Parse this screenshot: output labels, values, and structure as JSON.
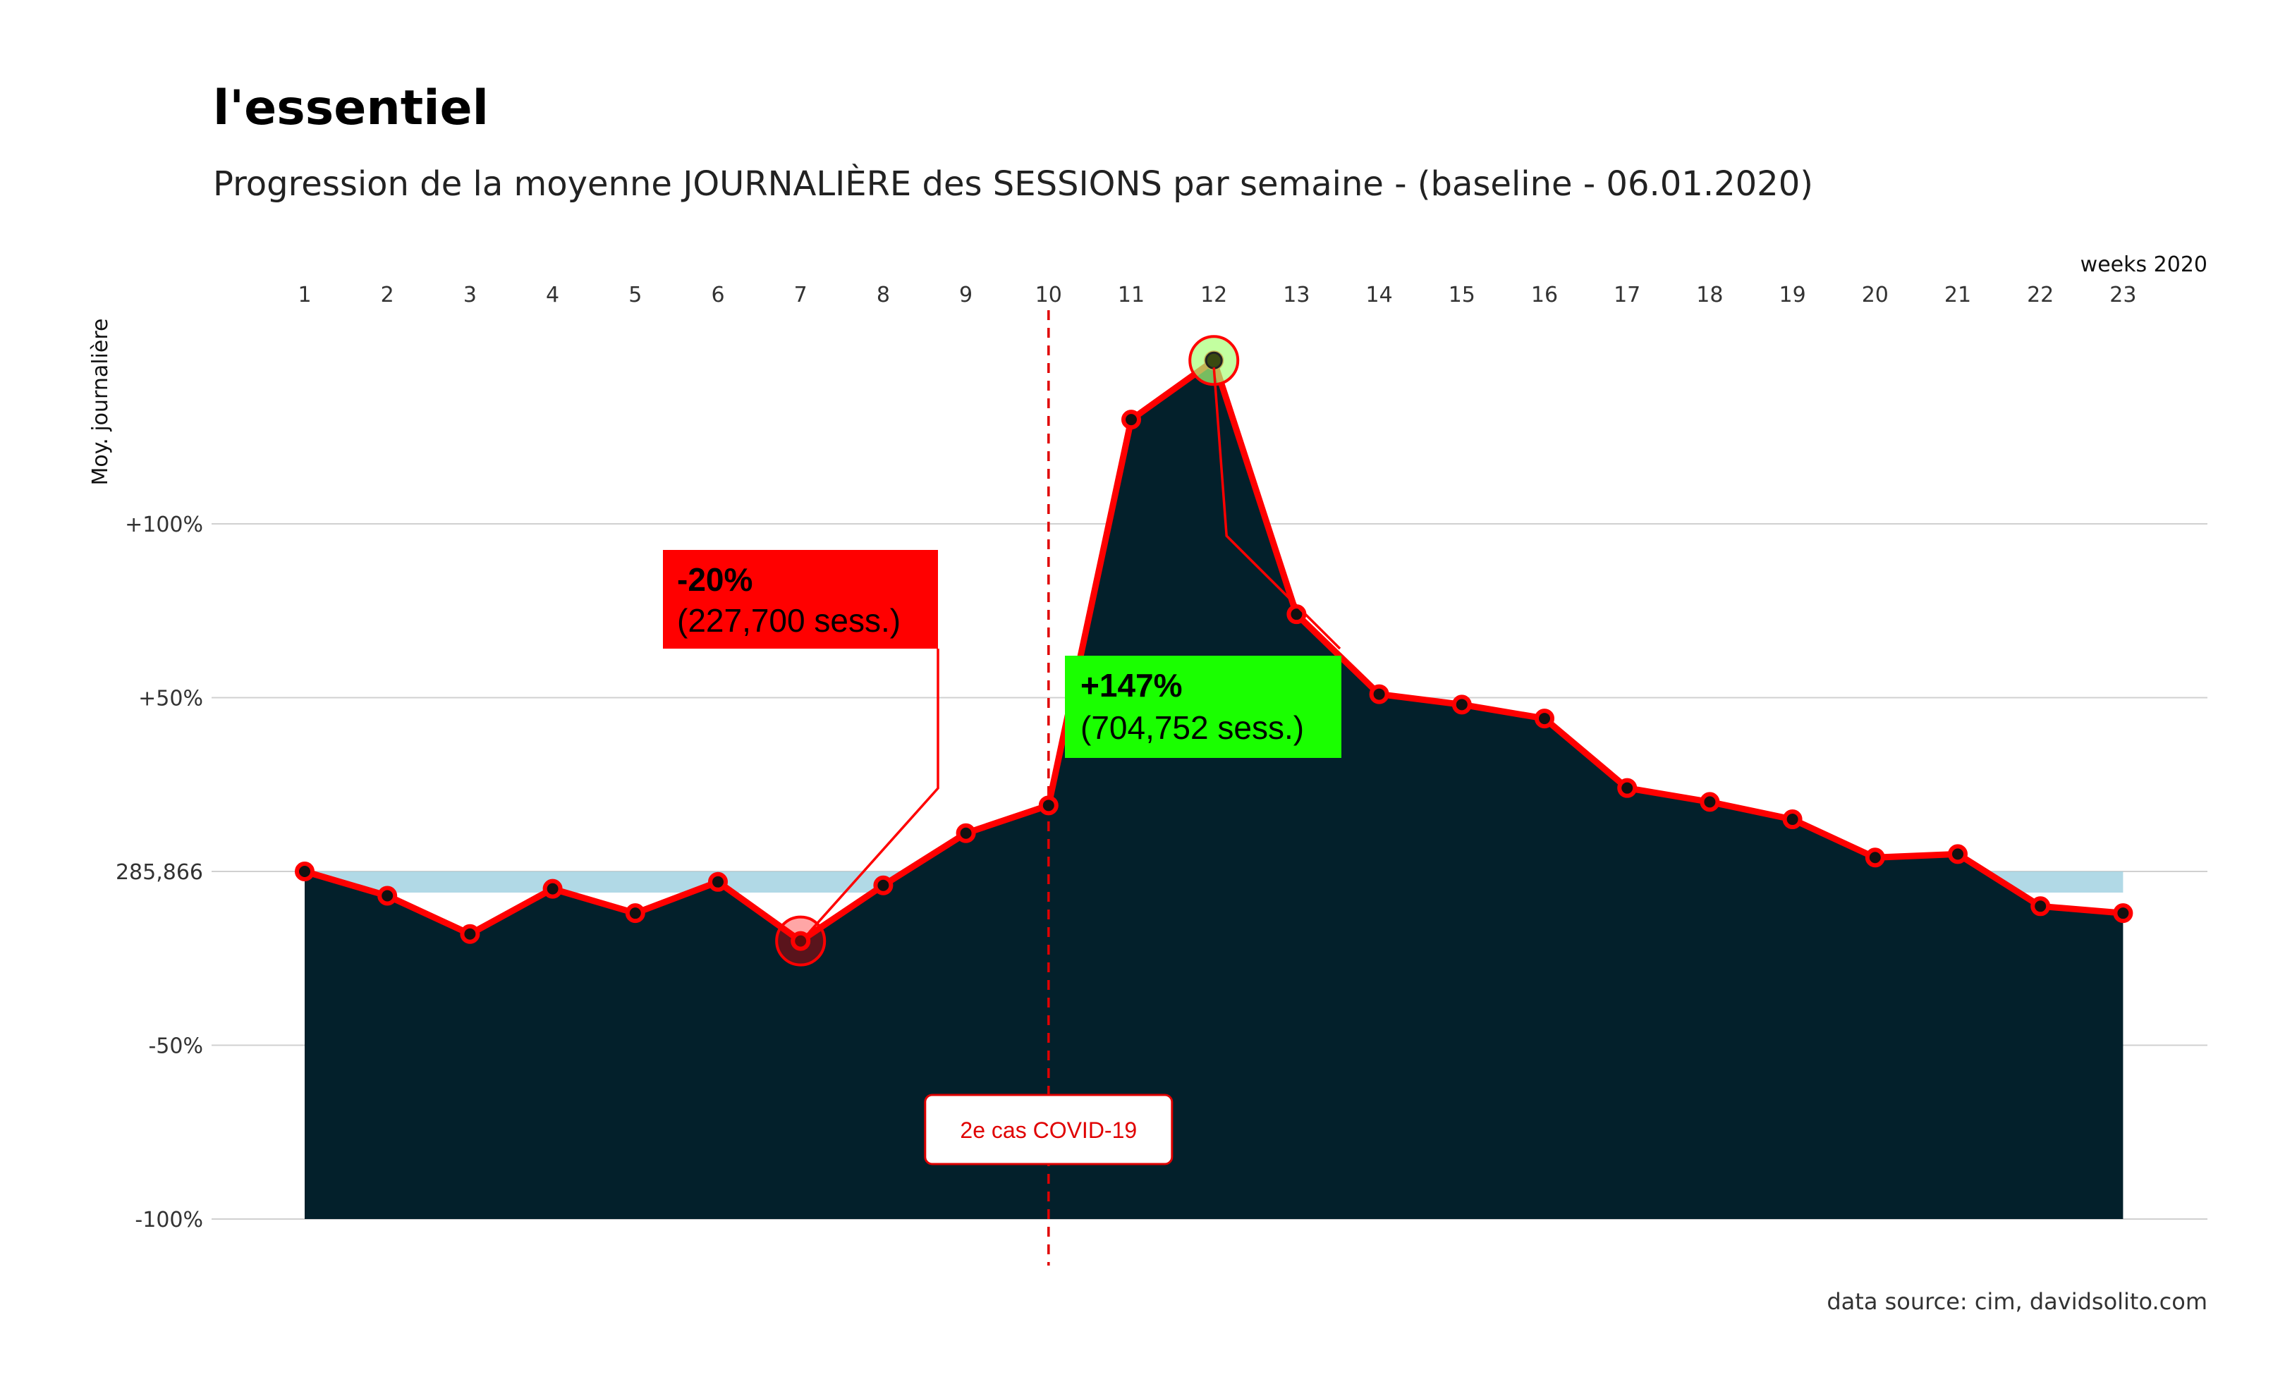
{
  "title": "l'essentiel",
  "subtitle": "Progression de la moyenne JOURNALIÈRE des SESSIONS par semaine - (baseline - 06.01.2020)",
  "caption": "data source: cim, davidsolito.com",
  "chart_data": {
    "type": "area",
    "x_axis": {
      "label": "weeks 2020",
      "position": "top",
      "ticks": [
        "1",
        "2",
        "3",
        "4",
        "5",
        "6",
        "7",
        "8",
        "9",
        "10",
        "11",
        "12",
        "13",
        "14",
        "15",
        "16",
        "17",
        "18",
        "19",
        "20",
        "21",
        "22",
        "23"
      ]
    },
    "y_axis": {
      "label": "Moy. journalière",
      "ticks": [
        -100,
        -50,
        0,
        50,
        100
      ],
      "tick_labels": [
        "-100%",
        "-50%",
        "285,866",
        "+50%",
        "+100%"
      ],
      "ylim": [
        -100,
        150
      ]
    },
    "baseline_sessions": 285866,
    "x": [
      1,
      2,
      3,
      4,
      5,
      6,
      7,
      8,
      9,
      10,
      11,
      12,
      13,
      14,
      15,
      16,
      17,
      18,
      19,
      20,
      21,
      22,
      23
    ],
    "values": [
      0,
      -7,
      -18,
      -5,
      -12,
      -3,
      -20,
      -4,
      11,
      19,
      130,
      147,
      74,
      51,
      48,
      44,
      24,
      20,
      15,
      4,
      5,
      -10,
      -12
    ],
    "annotations": [
      {
        "week": 7,
        "pct": "-20%",
        "sessions": "(227,700 sess.)",
        "box_color": "#ff0000"
      },
      {
        "week": 12,
        "pct": "+147%",
        "sessions": "(704,752 sess.)",
        "box_color": "#1aff00"
      }
    ],
    "event": {
      "week": 10,
      "label": "2e cas COVID-19"
    },
    "colors": {
      "area": "#03202b",
      "line": "#ff0000",
      "below_baseline": "#9ecfe0",
      "grid": "#d0d0d0"
    }
  }
}
